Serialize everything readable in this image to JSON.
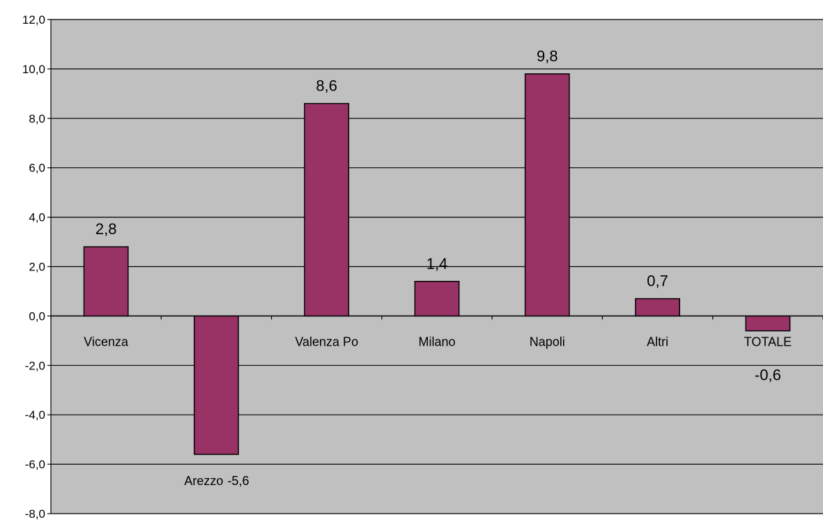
{
  "chart_data": {
    "type": "bar",
    "categories": [
      "Vicenza",
      "Arezzo",
      "Valenza Po",
      "Milano",
      "Napoli",
      "Altri",
      "TOTALE"
    ],
    "values": [
      2.8,
      -5.6,
      8.6,
      1.4,
      9.8,
      0.7,
      -0.6
    ],
    "data_labels": [
      "2,8",
      "-5,6",
      "8,6",
      "1,4",
      "9,8",
      "0,7",
      "-0,6"
    ],
    "ylim": [
      -8,
      12
    ],
    "yticks": [
      12,
      10,
      8,
      6,
      4,
      2,
      0,
      -2,
      -4,
      -6,
      -8
    ],
    "ytick_labels": [
      "12,0",
      "10,0",
      "8,0",
      "6,0",
      "4,0",
      "2,0",
      "0,0",
      "-2,0",
      "-4,0",
      "-6,0",
      "-8,0"
    ],
    "grid": true,
    "title": "",
    "xlabel": "",
    "ylabel": "",
    "colors": {
      "bar": "#993366",
      "plot_background": "#c0c0c0",
      "gridline": "#000000"
    }
  }
}
